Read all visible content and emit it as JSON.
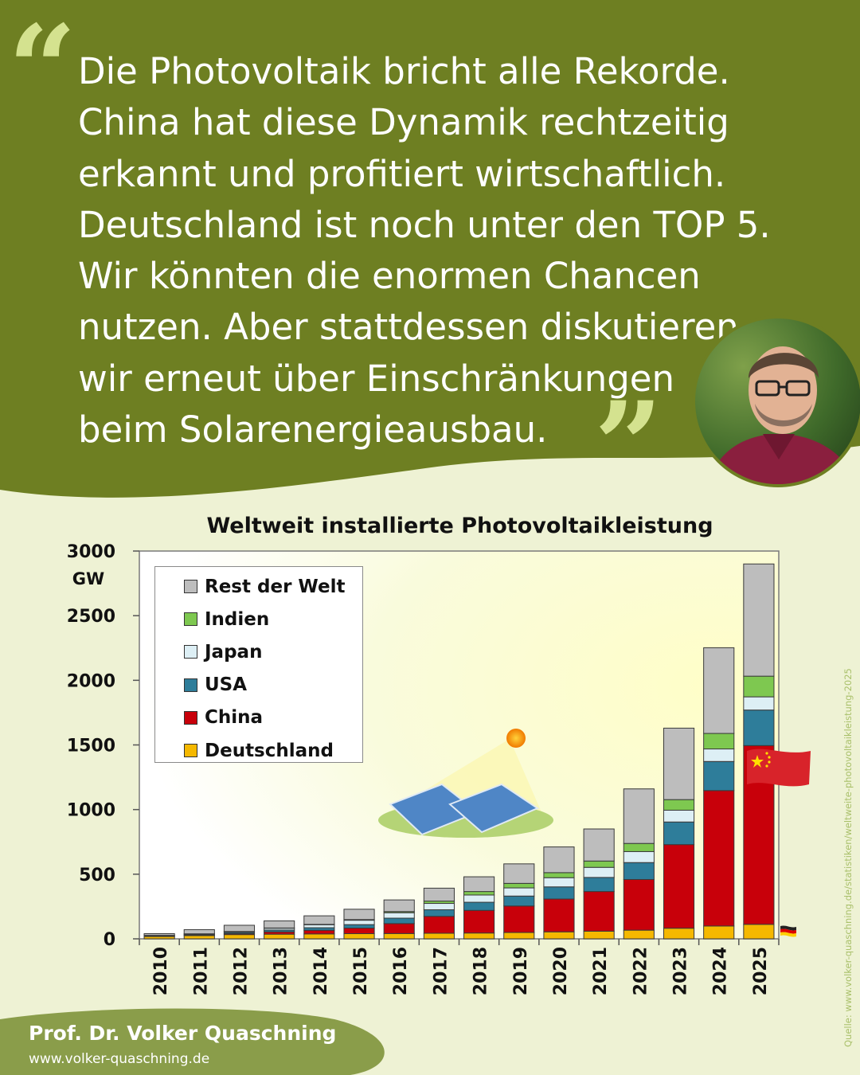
{
  "quote": {
    "lines": [
      "Die Photovoltaik bricht alle Rekorde.",
      "China hat diese Dynamik rechtzeitig",
      "erkannt und profitiert wirtschaftlich.",
      "Deutschland ist noch unter den TOP 5.",
      "Wir könnten die enormen Chancen",
      "nutzen. Aber stattdessen diskutieren",
      "wir erneut über Einschränkungen",
      "beim Solarenergieausbau."
    ],
    "open_mark": "“",
    "close_mark": "”"
  },
  "author": {
    "name": "Prof. Dr. Volker Quaschning",
    "url": "www.volker-quaschning.de"
  },
  "source": "Quelle: www.volker-quaschning.de/statistiken/weltweite-photovoltaikleistung-2025",
  "colors": {
    "header_green": "#6e7f22",
    "accent_green": "#d4e28f",
    "background": "#eef2d4",
    "footer_green": "#8a9d4a"
  },
  "chart_data": {
    "type": "bar",
    "stacked": true,
    "title": "Weltweit installierte Photovoltaikleistung",
    "ylabel": "GW",
    "ylim": [
      0,
      3000
    ],
    "yticks": [
      0,
      500,
      1000,
      1500,
      2000,
      2500,
      3000
    ],
    "categories": [
      "2010",
      "2011",
      "2012",
      "2013",
      "2014",
      "2015",
      "2016",
      "2017",
      "2018",
      "2019",
      "2020",
      "2021",
      "2022",
      "2023",
      "2024",
      "2025"
    ],
    "legend_position": "top-left",
    "series": [
      {
        "name": "Deutschland",
        "color": "#f5b800",
        "values": [
          18,
          25,
          33,
          36,
          38,
          40,
          41,
          43,
          45,
          49,
          54,
          59,
          67,
          82,
          99,
          112
        ]
      },
      {
        "name": "China",
        "color": "#c8000a",
        "values": [
          1,
          3,
          7,
          18,
          28,
          43,
          77,
          131,
          175,
          205,
          254,
          307,
          392,
          647,
          1048,
          1383
        ]
      },
      {
        "name": "USA",
        "color": "#2e7d9a",
        "values": [
          3,
          5,
          9,
          14,
          20,
          27,
          42,
          51,
          63,
          77,
          94,
          109,
          131,
          175,
          225,
          275
        ]
      },
      {
        "name": "Japan",
        "color": "#ddeff5",
        "values": [
          4,
          5,
          7,
          14,
          23,
          34,
          42,
          49,
          56,
          63,
          71,
          78,
          85,
          91,
          97,
          102
        ]
      },
      {
        "name": "Indien",
        "color": "#7ec850",
        "values": [
          1,
          1,
          1,
          2,
          3,
          5,
          9,
          18,
          27,
          35,
          39,
          49,
          63,
          82,
          120,
          160
        ]
      },
      {
        "name": "Rest der Welt",
        "color": "#bdbdbd",
        "values": [
          13,
          32,
          48,
          55,
          66,
          80,
          90,
          100,
          114,
          151,
          199,
          248,
          422,
          553,
          663,
          868
        ]
      }
    ]
  }
}
